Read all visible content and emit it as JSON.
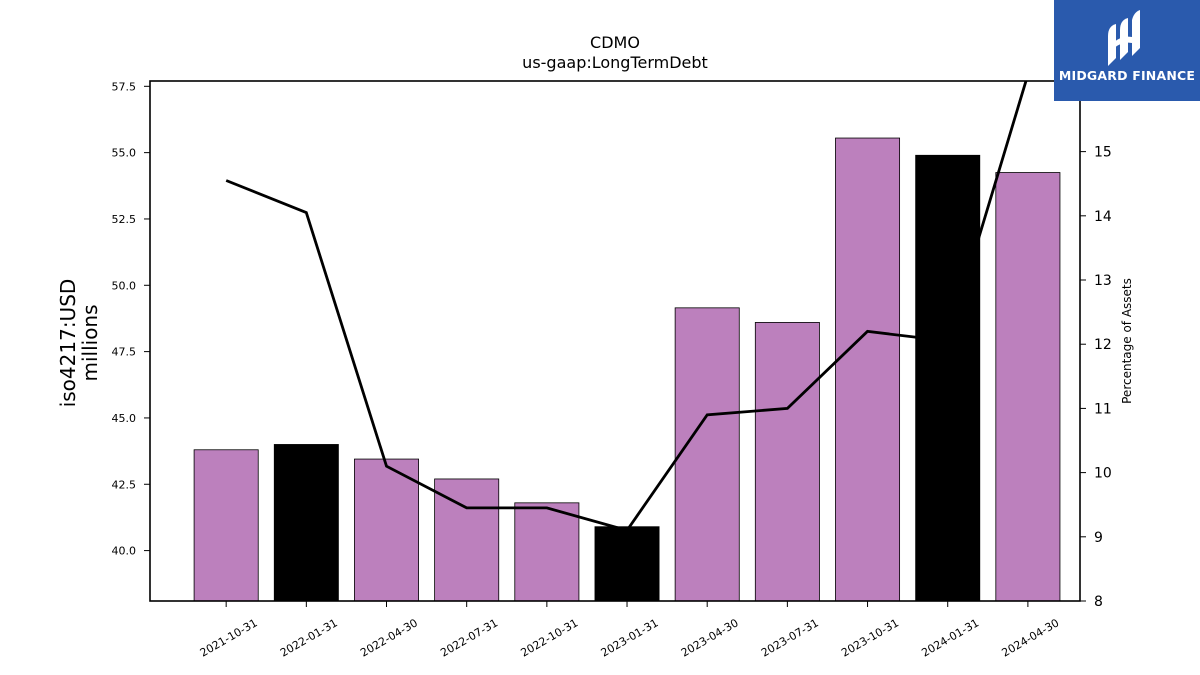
{
  "brand": {
    "name": "MIDGARD FINANCE",
    "icon": "midgard-logo-icon",
    "color": "#2a5aad"
  },
  "chart_data": {
    "type": "bar",
    "title": "CDMO",
    "subtitle": "us-gaap:LongTermDebt",
    "ylabel_lines": [
      "iso4217:USD",
      "millions"
    ],
    "y2label": "Percentage of Assets",
    "categories": [
      "2021-10-31",
      "2022-01-31",
      "2022-04-30",
      "2022-07-31",
      "2022-10-31",
      "2023-01-31",
      "2023-04-30",
      "2023-07-31",
      "2023-10-31",
      "2024-01-31",
      "2024-04-30"
    ],
    "series": [
      {
        "values": [
          43.8,
          44.0,
          43.45,
          42.7,
          41.8,
          40.9,
          49.15,
          48.6,
          55.55,
          54.9,
          54.25
        ]
      },
      {
        "type": "line",
        "axis": "right",
        "values": [
          14.55,
          14.05,
          10.1,
          9.45,
          9.45,
          9.1,
          10.9,
          11.0,
          12.2,
          12.05,
          16.2
        ]
      }
    ],
    "bar_colors": [
      "#bc80bd",
      "#000000",
      "#bc80bd",
      "#bc80bd",
      "#bc80bd",
      "#000000",
      "#bc80bd",
      "#bc80bd",
      "#bc80bd",
      "#000000",
      "#bc80bd"
    ],
    "line_color": "#000000",
    "ylim": [
      38.1,
      57.7
    ],
    "yticks": [
      "40.0",
      "42.5",
      "45.0",
      "47.5",
      "50.0",
      "52.5",
      "55.0",
      "57.5"
    ],
    "y2lim": [
      8,
      16.1
    ],
    "y2ticks": [
      "8",
      "9",
      "10",
      "11",
      "12",
      "13",
      "14",
      "15"
    ],
    "grid": false
  }
}
